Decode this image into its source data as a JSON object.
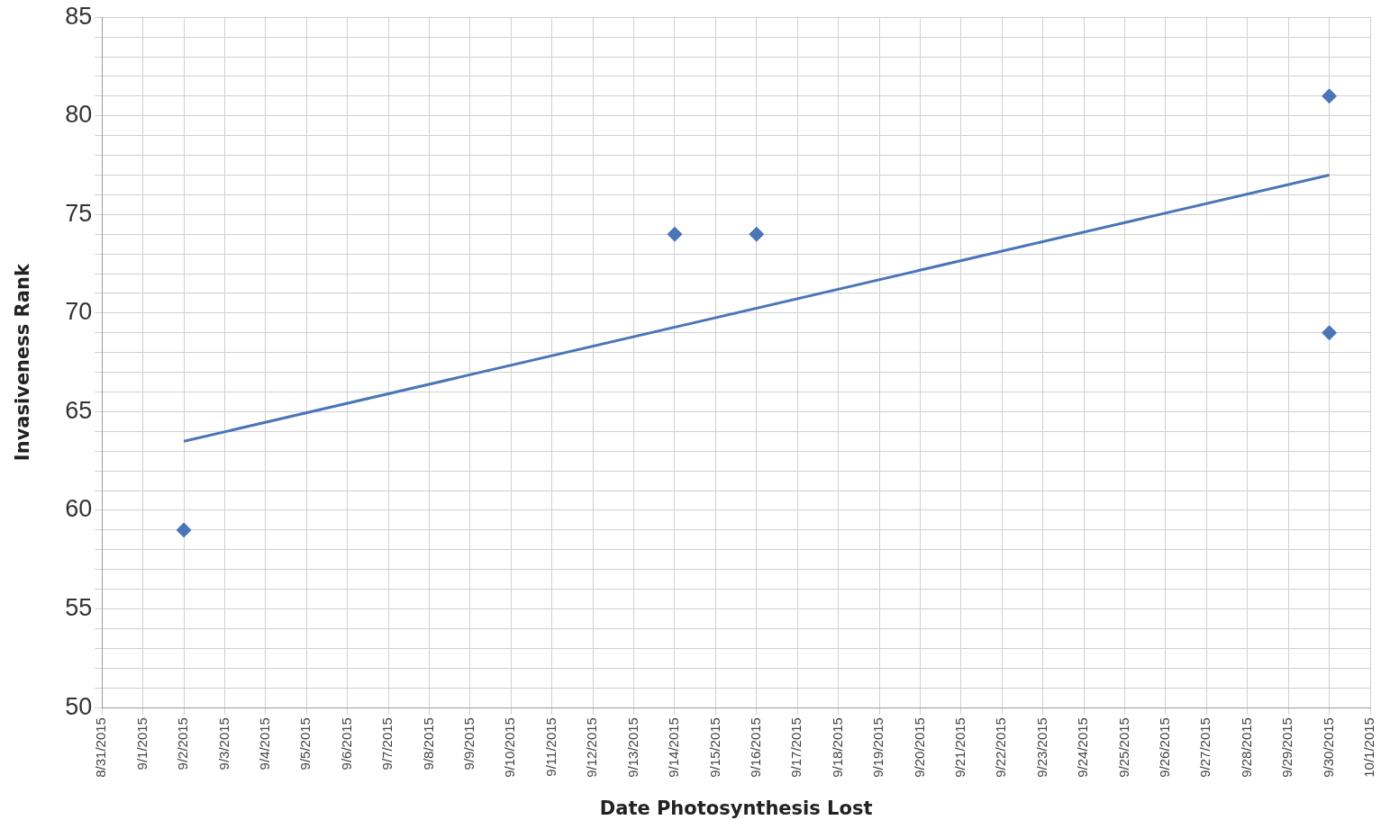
{
  "chart_data": {
    "type": "scatter",
    "xlabel": "Date Photosynthesis Lost",
    "ylabel": "Invasiveness Rank",
    "series": [
      {
        "color": "#4a76b8",
        "marker": "diamond",
        "x": [
          "2015-09-02",
          "2015-09-14",
          "2015-09-16",
          "2015-09-30",
          "2015-09-30"
        ],
        "values": [
          59,
          74,
          74,
          81,
          69
        ]
      },
      {
        "type": "line",
        "color": "#4a76b8",
        "marker": "none",
        "line_style": "solid",
        "x": [
          "2015-09-02",
          "2015-09-30"
        ],
        "values": [
          63.5,
          77
        ]
      }
    ],
    "xlim": [
      "2015-08-31",
      "2015-10-01"
    ],
    "xticks": [
      {
        "value": "2015-08-31",
        "label": "8/31/2015"
      },
      {
        "value": "2015-09-01",
        "label": "9/1/2015"
      },
      {
        "value": "2015-09-02",
        "label": "9/2/2015"
      },
      {
        "value": "2015-09-03",
        "label": "9/3/2015"
      },
      {
        "value": "2015-09-04",
        "label": "9/4/2015"
      },
      {
        "value": "2015-09-05",
        "label": "9/5/2015"
      },
      {
        "value": "2015-09-06",
        "label": "9/6/2015"
      },
      {
        "value": "2015-09-07",
        "label": "9/7/2015"
      },
      {
        "value": "2015-09-08",
        "label": "9/8/2015"
      },
      {
        "value": "2015-09-09",
        "label": "9/9/2015"
      },
      {
        "value": "2015-09-10",
        "label": "9/10/2015"
      },
      {
        "value": "2015-09-11",
        "label": "9/11/2015"
      },
      {
        "value": "2015-09-12",
        "label": "9/12/2015"
      },
      {
        "value": "2015-09-13",
        "label": "9/13/2015"
      },
      {
        "value": "2015-09-14",
        "label": "9/14/2015"
      },
      {
        "value": "2015-09-15",
        "label": "9/15/2015"
      },
      {
        "value": "2015-09-16",
        "label": "9/16/2015"
      },
      {
        "value": "2015-09-17",
        "label": "9/17/2015"
      },
      {
        "value": "2015-09-18",
        "label": "9/18/2015"
      },
      {
        "value": "2015-09-19",
        "label": "9/19/2015"
      },
      {
        "value": "2015-09-20",
        "label": "9/20/2015"
      },
      {
        "value": "2015-09-21",
        "label": "9/21/2015"
      },
      {
        "value": "2015-09-22",
        "label": "9/22/2015"
      },
      {
        "value": "2015-09-23",
        "label": "9/23/2015"
      },
      {
        "value": "2015-09-24",
        "label": "9/24/2015"
      },
      {
        "value": "2015-09-25",
        "label": "9/25/2015"
      },
      {
        "value": "2015-09-26",
        "label": "9/26/2015"
      },
      {
        "value": "2015-09-27",
        "label": "9/27/2015"
      },
      {
        "value": "2015-09-28",
        "label": "9/28/2015"
      },
      {
        "value": "2015-09-29",
        "label": "9/29/2015"
      },
      {
        "value": "2015-09-30",
        "label": "9/30/2015"
      },
      {
        "value": "2015-10-01",
        "label": "10/1/2015"
      }
    ],
    "ylim": [
      50,
      85
    ],
    "yticks": [
      50,
      {
        "value": 51,
        "label": null
      },
      {
        "value": 52,
        "label": null
      },
      {
        "value": 53,
        "label": null
      },
      {
        "value": 54,
        "label": null
      },
      55,
      {
        "value": 56,
        "label": null
      },
      {
        "value": 57,
        "label": null
      },
      {
        "value": 58,
        "label": null
      },
      {
        "value": 59,
        "label": null
      },
      60,
      {
        "value": 61,
        "label": null
      },
      {
        "value": 62,
        "label": null
      },
      {
        "value": 63,
        "label": null
      },
      {
        "value": 64,
        "label": null
      },
      65,
      {
        "value": 66,
        "label": null
      },
      {
        "value": 67,
        "label": null
      },
      {
        "value": 68,
        "label": null
      },
      {
        "value": 69,
        "label": null
      },
      70,
      {
        "value": 71,
        "label": null
      },
      {
        "value": 72,
        "label": null
      },
      {
        "value": 73,
        "label": null
      },
      {
        "value": 74,
        "label": null
      },
      75,
      {
        "value": 76,
        "label": null
      },
      {
        "value": 77,
        "label": null
      },
      {
        "value": 78,
        "label": null
      },
      {
        "value": 79,
        "label": null
      },
      80,
      {
        "value": 81,
        "label": null
      },
      {
        "value": 82,
        "label": null
      },
      {
        "value": 83,
        "label": null
      },
      {
        "value": 84,
        "label": null
      },
      85
    ],
    "grid": true,
    "legend": false
  }
}
